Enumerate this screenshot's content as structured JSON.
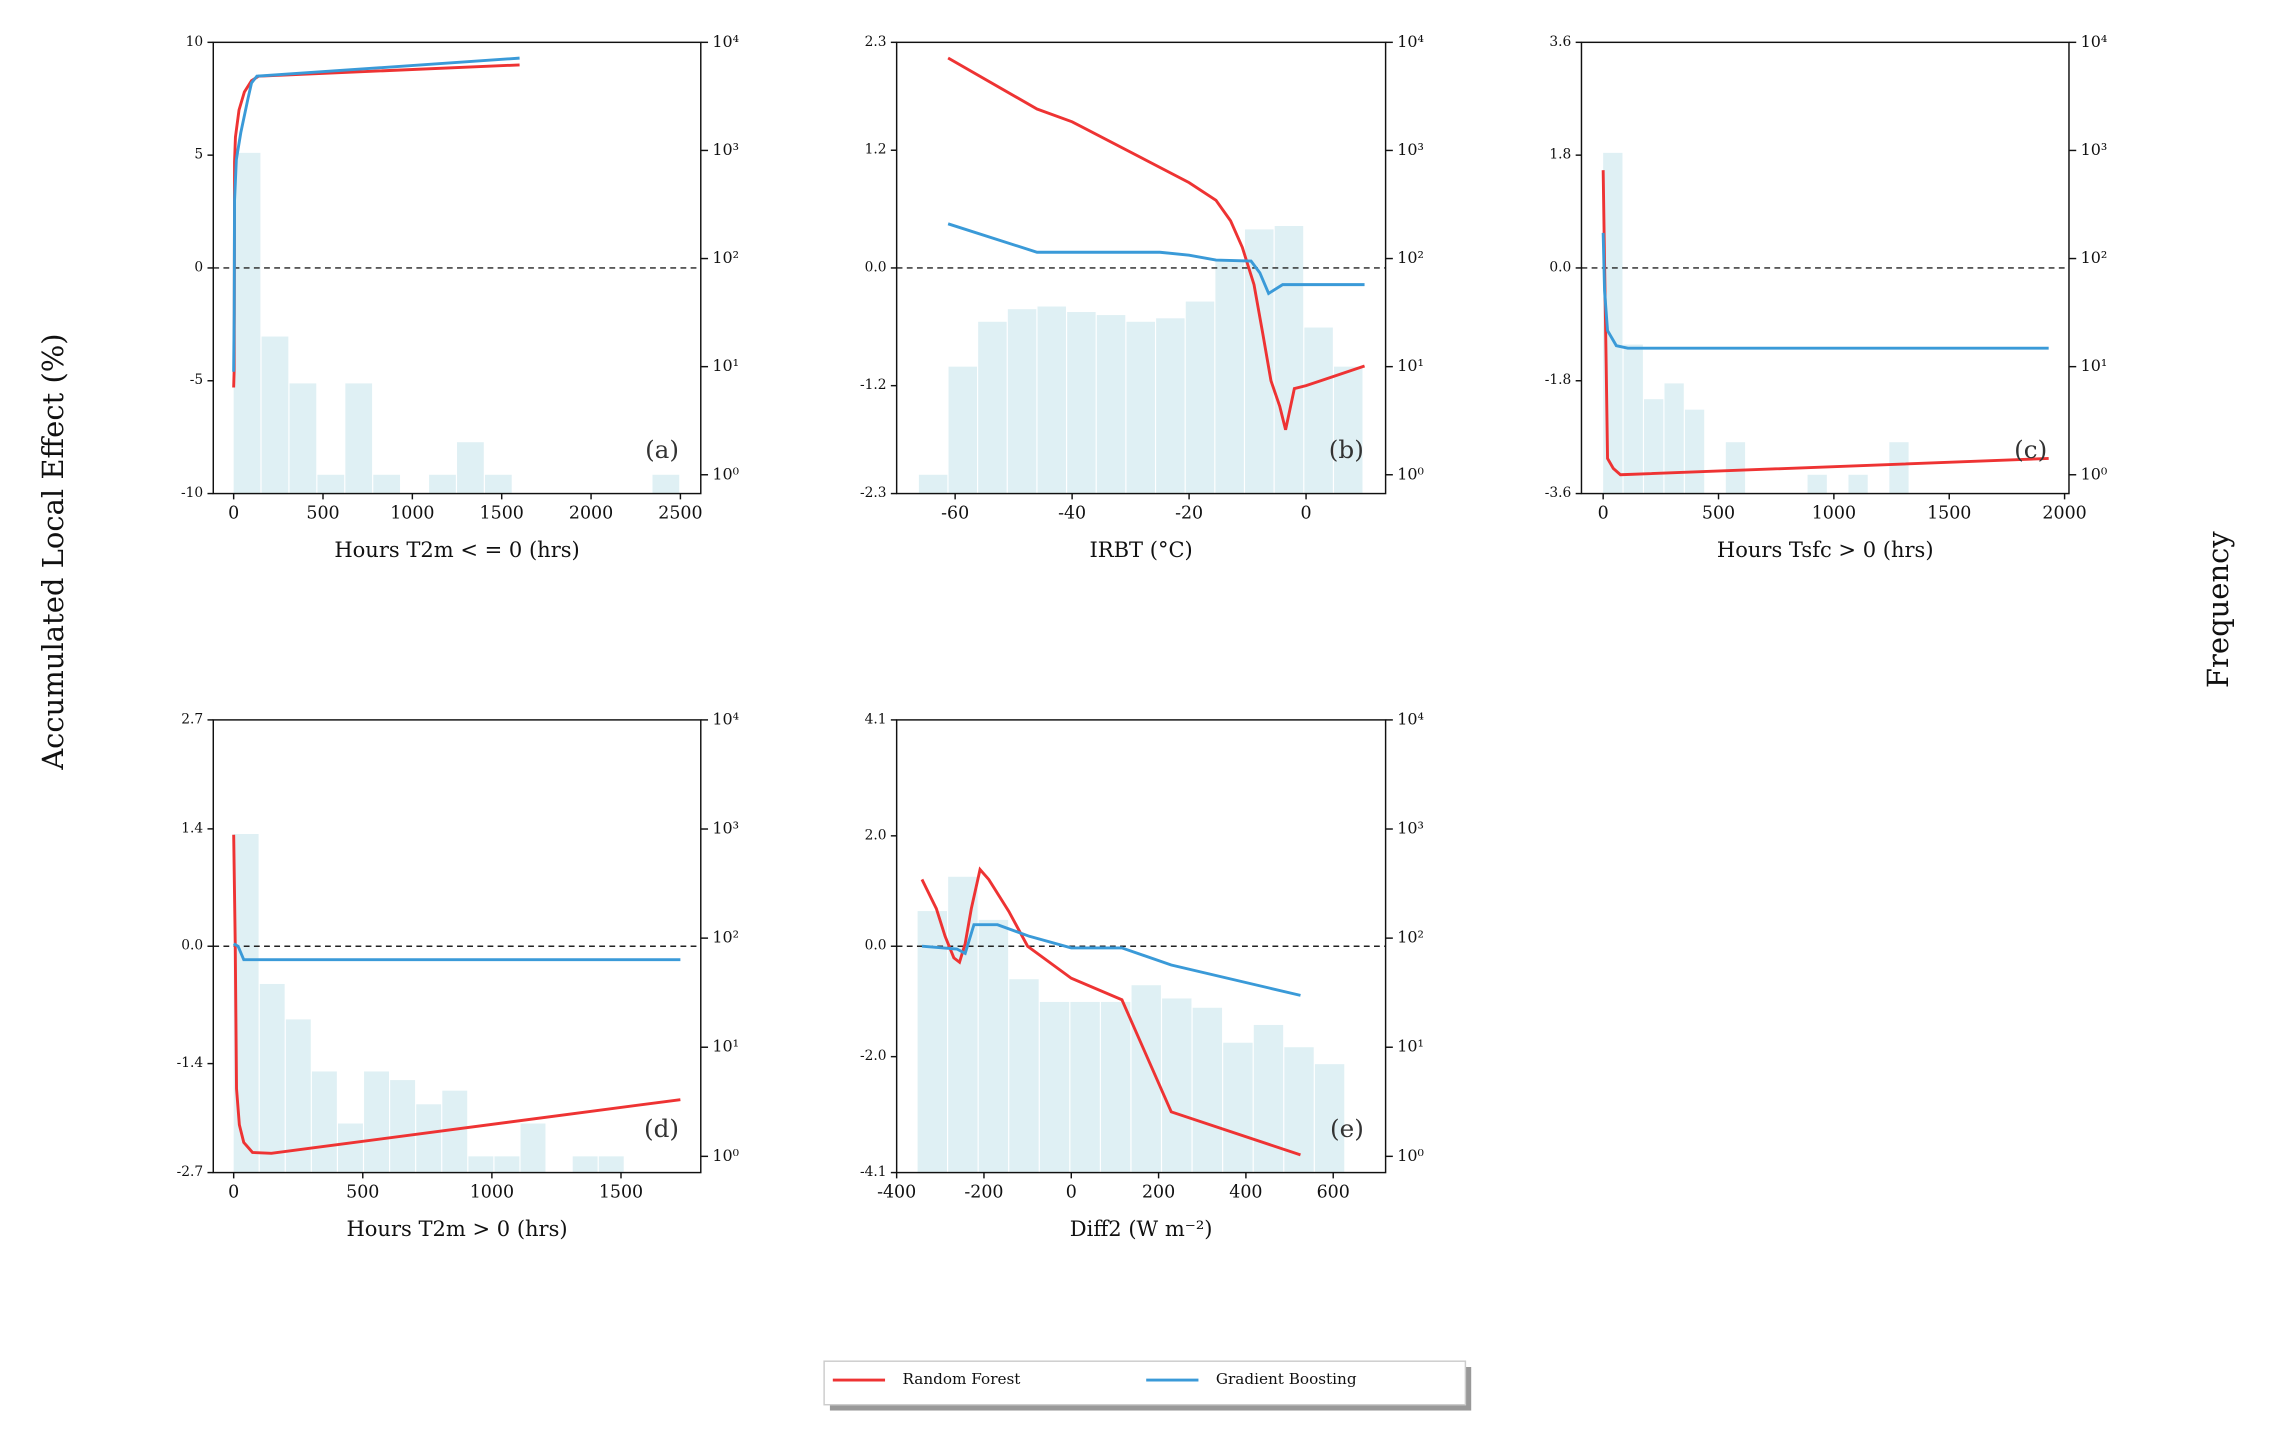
{
  "ylabel": "Accumulated Local Effect (%)",
  "y2label": "Frequency",
  "chart_data": [
    {
      "type": "line",
      "label": "(a)",
      "xlabel": "Hours T2m < = 0 (hrs)",
      "xlim": [
        -114,
        2614
      ],
      "xticks": [
        0,
        500,
        1000,
        1500,
        2000,
        2500
      ],
      "ylim": [
        -10,
        10
      ],
      "yticks": [
        -10,
        -5,
        0,
        5,
        10
      ],
      "y2lim": [
        0.67,
        10000
      ],
      "y2log": true,
      "y2ticks": [
        {
          "value": 1,
          "label": "10⁰"
        },
        {
          "value": 10,
          "label": "10¹"
        },
        {
          "value": 100,
          "label": "10²"
        },
        {
          "value": 1000,
          "label": "10³"
        },
        {
          "value": 10000,
          "label": "10⁴"
        }
      ],
      "hline": 0,
      "histogram": {
        "color": "#dff0f4",
        "bins": [
          0,
          156.25,
          312.5,
          468.75,
          625,
          781.25,
          937.5,
          1093.75,
          1250,
          1406.25,
          1562.5,
          1718.75,
          1875,
          2031.25,
          2187.5,
          2343.75,
          2500
        ],
        "counts": [
          950,
          19,
          7,
          1,
          7,
          1,
          0,
          1,
          2,
          1,
          0,
          0,
          0,
          0,
          0,
          1
        ]
      },
      "series": [
        {
          "name": "Random Forest",
          "color": "#ee3333",
          "x": [
            0,
            3,
            5,
            10,
            30,
            60,
            100,
            140,
            1600
          ],
          "values": [
            -5.3,
            -4.5,
            4.7,
            5.8,
            7.0,
            7.8,
            8.3,
            8.5,
            9.0
          ]
        },
        {
          "name": "Gradient Boosting",
          "color": "#3a9ad8",
          "x": [
            0,
            3,
            5,
            15,
            40,
            80,
            100,
            130,
            1600
          ],
          "values": [
            -4.6,
            -2,
            3,
            4.8,
            6.0,
            7.5,
            8.2,
            8.5,
            9.3
          ]
        }
      ]
    },
    {
      "type": "line",
      "label": "(b)",
      "xlabel": "IRBT (°C)",
      "xlim": [
        -70,
        13.6
      ],
      "xticks": [
        -60,
        -40,
        -20,
        0
      ],
      "ylim": [
        -2.3,
        2.3
      ],
      "yticks": [
        -2.3,
        -1.2,
        {
          "value": 0,
          "label": "0.0"
        },
        1.2,
        2.3
      ],
      "y2lim": [
        0.67,
        10000
      ],
      "y2log": true,
      "y2ticks": [
        {
          "value": 1,
          "label": "10⁰"
        },
        {
          "value": 10,
          "label": "10¹"
        },
        {
          "value": 100,
          "label": "10²"
        },
        {
          "value": 1000,
          "label": "10³"
        },
        {
          "value": 10000,
          "label": "10⁴"
        }
      ],
      "hline": 0,
      "histogram": {
        "color": "#dff0f4",
        "bins": [
          -66.2,
          -61.13,
          -56.06,
          -50.99,
          -45.92,
          -40.85,
          -35.78,
          -30.71,
          -25.64,
          -20.57,
          -15.5,
          -10.43,
          -5.36,
          -0.29,
          4.78,
          9.85
        ],
        "counts": [
          1,
          10,
          26,
          34,
          36,
          32,
          30,
          26,
          28,
          40,
          94,
          186,
          200,
          23,
          10
        ]
      },
      "series": [
        {
          "name": "Random Forest",
          "color": "#ee3333",
          "x": [
            -61.2,
            -46,
            -40,
            -20,
            -15.4,
            -12.9,
            -10.9,
            -8.9,
            -7.4,
            -6,
            -4.5,
            -3.5,
            -2,
            0,
            10
          ],
          "values": [
            2.14,
            1.62,
            1.49,
            0.87,
            0.69,
            0.48,
            0.21,
            -0.17,
            -0.67,
            -1.15,
            -1.41,
            -1.65,
            -1.23,
            -1.2,
            -1.0
          ]
        },
        {
          "name": "Gradient Boosting",
          "color": "#3a9ad8",
          "x": [
            -61.2,
            -46,
            -25,
            -20,
            -15.4,
            -9.4,
            -7.9,
            -6.4,
            -4,
            10
          ],
          "values": [
            0.45,
            0.16,
            0.16,
            0.13,
            0.08,
            0.07,
            -0.05,
            -0.26,
            -0.17,
            -0.17
          ]
        }
      ]
    },
    {
      "type": "line",
      "label": "(c)",
      "xlabel": "Hours Tsfc > 0 (hrs)",
      "xlim": [
        -94,
        2019
      ],
      "xticks": [
        0,
        500,
        1000,
        1500,
        2000
      ],
      "ylim": [
        -3.6,
        3.6
      ],
      "yticks": [
        -3.6,
        -1.8,
        {
          "value": 0,
          "label": "0.0"
        },
        1.8,
        3.6
      ],
      "y2lim": [
        0.67,
        10000
      ],
      "y2log": true,
      "y2ticks": [
        {
          "value": 1,
          "label": "10⁰"
        },
        {
          "value": 10,
          "label": "10¹"
        },
        {
          "value": 100,
          "label": "10²"
        },
        {
          "value": 1000,
          "label": "10³"
        },
        {
          "value": 10000,
          "label": "10⁴"
        }
      ],
      "hline": 0,
      "histogram": {
        "color": "#dff0f4",
        "bins": [
          0,
          88.6,
          177.2,
          265.8,
          354.4,
          443,
          531.6,
          620.2,
          708.8,
          797.4,
          886,
          974.6,
          1063.2,
          1151.8,
          1240.4,
          1329,
          1417.6,
          1506.2,
          1594.8,
          1683.4,
          1772,
          1860.6,
          1949.2
        ],
        "counts": [
          950,
          16,
          5,
          7,
          4,
          0,
          2,
          0,
          0,
          0,
          1,
          0,
          1,
          0,
          2,
          0,
          0,
          0,
          0,
          0,
          0,
          0
        ]
      },
      "series": [
        {
          "name": "Random Forest",
          "color": "#ee3333",
          "x": [
            0,
            6,
            13,
            19,
            44,
            75,
            1931
          ],
          "values": [
            1.56,
            0.1,
            -1.52,
            -3.04,
            -3.2,
            -3.3,
            -3.04
          ]
        },
        {
          "name": "Gradient Boosting",
          "color": "#3a9ad8",
          "x": [
            0,
            6,
            19,
            57,
            107,
            1931
          ],
          "values": [
            0.56,
            -0.36,
            -1.0,
            -1.24,
            -1.28,
            -1.28
          ]
        }
      ]
    },
    {
      "type": "line",
      "label": "(d)",
      "xlabel": "Hours T2m > 0 (hrs)",
      "xlim": [
        -79,
        1809
      ],
      "xticks": [
        0,
        500,
        1000,
        1500
      ],
      "ylim": [
        -2.7,
        2.7
      ],
      "yticks": [
        -2.7,
        -1.4,
        {
          "value": 0,
          "label": "0.0"
        },
        1.4,
        2.7
      ],
      "y2lim": [
        0.71,
        10000
      ],
      "y2log": true,
      "y2ticks": [
        {
          "value": 1,
          "label": "10⁰"
        },
        {
          "value": 10,
          "label": "10¹"
        },
        {
          "value": 100,
          "label": "10²"
        },
        {
          "value": 1000,
          "label": "10³"
        },
        {
          "value": 10000,
          "label": "10⁴"
        }
      ],
      "hline": 0,
      "histogram": {
        "color": "#dff0f4",
        "bins": [
          0,
          101,
          202,
          303,
          404,
          505,
          606,
          707,
          808,
          909,
          1010,
          1111,
          1212,
          1313,
          1414,
          1515
        ],
        "counts": [
          900,
          38,
          18,
          6,
          2,
          6,
          5,
          3,
          4,
          1,
          1,
          2,
          0,
          1,
          1
        ]
      },
      "series": [
        {
          "name": "Random Forest",
          "color": "#ee3333",
          "x": [
            0,
            6,
            11,
            22,
            39,
            73,
            146,
            1730
          ],
          "values": [
            1.33,
            0.03,
            -1.7,
            -2.13,
            -2.34,
            -2.46,
            -2.47,
            -1.83
          ]
        },
        {
          "name": "Gradient Boosting",
          "color": "#3a9ad8",
          "x": [
            0,
            17,
            39,
            1730
          ],
          "values": [
            0.03,
            0,
            -0.16,
            -0.16
          ]
        }
      ]
    },
    {
      "type": "line",
      "label": "(e)",
      "xlabel": "Diff2 (W m⁻²)",
      "xlim": [
        -400,
        720
      ],
      "xticks": [
        -400,
        -200,
        0,
        200,
        400,
        600
      ],
      "ylim": [
        -4.1,
        4.1
      ],
      "yticks": [
        -4.1,
        {
          "value": -2,
          "label": "-2.0"
        },
        {
          "value": 0,
          "label": "0.0"
        },
        {
          "value": 2,
          "label": "2.0"
        },
        4.1
      ],
      "y2lim": [
        0.71,
        10000
      ],
      "y2log": true,
      "y2ticks": [
        {
          "value": 1,
          "label": "10⁰"
        },
        {
          "value": 10,
          "label": "10¹"
        },
        {
          "value": 100,
          "label": "10²"
        },
        {
          "value": 1000,
          "label": "10³"
        },
        {
          "value": 10000,
          "label": "10⁴"
        }
      ],
      "hline": 0,
      "histogram": {
        "color": "#dff0f4",
        "bins": [
          -352,
          -282,
          -212,
          -142,
          -72,
          -2,
          68,
          138,
          208,
          278,
          348,
          418,
          488,
          558,
          628
        ],
        "counts": [
          177,
          365,
          147,
          42,
          26,
          26,
          26,
          37,
          28,
          23,
          11,
          16,
          10,
          7
        ]
      },
      "series": [
        {
          "name": "Random Forest",
          "color": "#ee3333",
          "x": [
            -342,
            -309,
            -289,
            -269,
            -256,
            -243,
            -229,
            -209,
            -189,
            -143,
            -100,
            0,
            116,
            229,
            525
          ],
          "values": [
            1.21,
            0.68,
            0.18,
            -0.21,
            -0.29,
            0.05,
            0.68,
            1.39,
            1.21,
            0.63,
            0,
            -0.58,
            -0.97,
            -3.0,
            -3.78
          ]
        },
        {
          "name": "Gradient Boosting",
          "color": "#3a9ad8",
          "x": [
            -342,
            -262,
            -243,
            -223,
            -169,
            -96,
            0,
            116,
            229,
            525
          ],
          "values": [
            0,
            -0.05,
            -0.13,
            0.39,
            0.39,
            0.18,
            -0.03,
            -0.03,
            -0.34,
            -0.89
          ]
        }
      ]
    }
  ]
}
